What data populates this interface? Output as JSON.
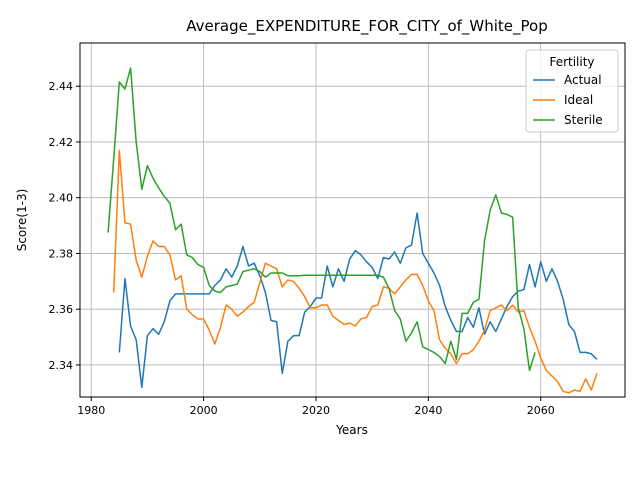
{
  "chart_data": {
    "type": "line",
    "title": "Average_EXPENDITURE_FOR_CITY_of_White_Pop",
    "xlabel": "Years",
    "ylabel": "Score(1-3)",
    "xlim": [
      1978,
      2075
    ],
    "ylim": [
      2.3285,
      2.4555
    ],
    "xticks": [
      1980,
      2000,
      2020,
      2040,
      2060
    ],
    "yticks": [
      2.34,
      2.36,
      2.38,
      2.4,
      2.42,
      2.44
    ],
    "ytick_labels": [
      "2.34",
      "2.36",
      "2.38",
      "2.40",
      "2.42",
      "2.44"
    ],
    "grid": true,
    "legend": {
      "title": "Fertility",
      "placement": "top-right"
    },
    "series": [
      {
        "name": "Actual",
        "color": "#1f77b4",
        "points": [
          [
            1985,
            2.3445
          ],
          [
            1986,
            2.371
          ],
          [
            1987,
            2.354
          ],
          [
            1988,
            2.349
          ],
          [
            1989,
            2.332
          ],
          [
            1990,
            2.3505
          ],
          [
            1991,
            2.353
          ],
          [
            1992,
            2.351
          ],
          [
            1993,
            2.3555
          ],
          [
            1994,
            2.363
          ],
          [
            1995,
            2.3655
          ],
          [
            1996,
            2.3655
          ],
          [
            1997,
            2.3655
          ],
          [
            1998,
            2.3655
          ],
          [
            1999,
            2.3655
          ],
          [
            2000,
            2.3655
          ],
          [
            2001,
            2.3655
          ],
          [
            2002,
            2.3685
          ],
          [
            2003,
            2.3705
          ],
          [
            2004,
            2.3745
          ],
          [
            2005,
            2.3715
          ],
          [
            2006,
            2.3755
          ],
          [
            2007,
            2.3825
          ],
          [
            2008,
            2.3755
          ],
          [
            2009,
            2.3765
          ],
          [
            2010,
            2.372
          ],
          [
            2011,
            2.366
          ],
          [
            2012,
            2.356
          ],
          [
            2013,
            2.3555
          ],
          [
            2014,
            2.337
          ],
          [
            2015,
            2.3485
          ],
          [
            2016,
            2.3505
          ],
          [
            2017,
            2.3505
          ],
          [
            2018,
            2.359
          ],
          [
            2019,
            2.361
          ],
          [
            2020,
            2.364
          ],
          [
            2021,
            2.364
          ],
          [
            2022,
            2.3755
          ],
          [
            2023,
            2.368
          ],
          [
            2024,
            2.3745
          ],
          [
            2025,
            2.37
          ],
          [
            2026,
            2.378
          ],
          [
            2027,
            2.381
          ],
          [
            2028,
            2.3795
          ],
          [
            2029,
            2.377
          ],
          [
            2030,
            2.375
          ],
          [
            2031,
            2.371
          ],
          [
            2032,
            2.3785
          ],
          [
            2033,
            2.378
          ],
          [
            2034,
            2.3805
          ],
          [
            2035,
            2.3765
          ],
          [
            2036,
            2.382
          ],
          [
            2037,
            2.383
          ],
          [
            2038,
            2.3945
          ],
          [
            2039,
            2.38
          ],
          [
            2040,
            2.3765
          ],
          [
            2041,
            2.373
          ],
          [
            2042,
            2.3685
          ],
          [
            2043,
            2.361
          ],
          [
            2044,
            2.356
          ],
          [
            2045,
            2.352
          ],
          [
            2046,
            2.352
          ],
          [
            2047,
            2.357
          ],
          [
            2048,
            2.3535
          ],
          [
            2049,
            2.3605
          ],
          [
            2050,
            2.351
          ],
          [
            2051,
            2.3555
          ],
          [
            2052,
            2.352
          ],
          [
            2053,
            2.3565
          ],
          [
            2054,
            2.361
          ],
          [
            2055,
            2.3645
          ],
          [
            2056,
            2.3665
          ],
          [
            2057,
            2.367
          ],
          [
            2058,
            2.376
          ],
          [
            2059,
            2.368
          ],
          [
            2060,
            2.377
          ],
          [
            2061,
            2.37
          ],
          [
            2062,
            2.3745
          ],
          [
            2063,
            2.37
          ],
          [
            2064,
            2.3635
          ],
          [
            2065,
            2.3545
          ],
          [
            2066,
            2.352
          ],
          [
            2067,
            2.3445
          ],
          [
            2068,
            2.3445
          ],
          [
            2069,
            2.344
          ],
          [
            2070,
            2.342
          ]
        ]
      },
      {
        "name": "Ideal",
        "color": "#ff7f0e",
        "points": [
          [
            1984,
            2.366
          ],
          [
            1985,
            2.417
          ],
          [
            1986,
            2.391
          ],
          [
            1987,
            2.3905
          ],
          [
            1988,
            2.3775
          ],
          [
            1989,
            2.3715
          ],
          [
            1990,
            2.379
          ],
          [
            1991,
            2.3845
          ],
          [
            1992,
            2.3825
          ],
          [
            1993,
            2.3825
          ],
          [
            1994,
            2.3795
          ],
          [
            1995,
            2.3705
          ],
          [
            1996,
            2.372
          ],
          [
            1997,
            2.36
          ],
          [
            1998,
            2.358
          ],
          [
            1999,
            2.3565
          ],
          [
            2000,
            2.3565
          ],
          [
            2001,
            2.3525
          ],
          [
            2002,
            2.3475
          ],
          [
            2003,
            2.3535
          ],
          [
            2004,
            2.3615
          ],
          [
            2005,
            2.36
          ],
          [
            2006,
            2.3575
          ],
          [
            2007,
            2.359
          ],
          [
            2008,
            2.361
          ],
          [
            2009,
            2.3625
          ],
          [
            2010,
            2.3695
          ],
          [
            2011,
            2.3765
          ],
          [
            2012,
            2.3755
          ],
          [
            2013,
            2.3745
          ],
          [
            2014,
            2.368
          ],
          [
            2015,
            2.3705
          ],
          [
            2016,
            2.37
          ],
          [
            2017,
            2.3675
          ],
          [
            2018,
            2.3645
          ],
          [
            2019,
            2.3605
          ],
          [
            2020,
            2.3605
          ],
          [
            2021,
            2.3615
          ],
          [
            2022,
            2.3615
          ],
          [
            2023,
            2.3575
          ],
          [
            2024,
            2.356
          ],
          [
            2025,
            2.3545
          ],
          [
            2026,
            2.355
          ],
          [
            2027,
            2.354
          ],
          [
            2028,
            2.3565
          ],
          [
            2029,
            2.357
          ],
          [
            2030,
            2.361
          ],
          [
            2031,
            2.3615
          ],
          [
            2032,
            2.368
          ],
          [
            2033,
            2.3675
          ],
          [
            2034,
            2.3655
          ],
          [
            2035,
            2.368
          ],
          [
            2036,
            2.3705
          ],
          [
            2037,
            2.3725
          ],
          [
            2038,
            2.3725
          ],
          [
            2039,
            2.3685
          ],
          [
            2040,
            2.363
          ],
          [
            2041,
            2.3595
          ],
          [
            2042,
            2.349
          ],
          [
            2043,
            2.346
          ],
          [
            2044,
            2.344
          ],
          [
            2045,
            2.3405
          ],
          [
            2046,
            2.344
          ],
          [
            2047,
            2.344
          ],
          [
            2048,
            2.3455
          ],
          [
            2049,
            2.3485
          ],
          [
            2050,
            2.3525
          ],
          [
            2051,
            2.3595
          ],
          [
            2052,
            2.3605
          ],
          [
            2053,
            2.3615
          ],
          [
            2054,
            2.3595
          ],
          [
            2055,
            2.3615
          ],
          [
            2056,
            2.359
          ],
          [
            2057,
            2.3595
          ],
          [
            2058,
            2.3535
          ],
          [
            2059,
            2.3485
          ],
          [
            2060,
            2.3425
          ],
          [
            2061,
            2.338
          ],
          [
            2062,
            2.336
          ],
          [
            2063,
            2.334
          ],
          [
            2064,
            2.3305
          ],
          [
            2065,
            2.33
          ],
          [
            2066,
            2.331
          ],
          [
            2067,
            2.3305
          ],
          [
            2068,
            2.335
          ],
          [
            2069,
            2.331
          ],
          [
            2070,
            2.337
          ]
        ]
      },
      {
        "name": "Sterile",
        "color": "#2ca02c",
        "points": [
          [
            1983,
            2.3875
          ],
          [
            1984,
            2.414
          ],
          [
            1985,
            2.4415
          ],
          [
            1986,
            2.439
          ],
          [
            1987,
            2.4465
          ],
          [
            1988,
            2.42
          ],
          [
            1989,
            2.403
          ],
          [
            1990,
            2.4115
          ],
          [
            1991,
            2.407
          ],
          [
            1992,
            2.4035
          ],
          [
            1993,
            2.4005
          ],
          [
            1994,
            2.398
          ],
          [
            1995,
            2.3885
          ],
          [
            1996,
            2.3905
          ],
          [
            1997,
            2.3795
          ],
          [
            1998,
            2.3785
          ],
          [
            1999,
            2.376
          ],
          [
            2000,
            2.375
          ],
          [
            2001,
            2.3685
          ],
          [
            2002,
            2.3665
          ],
          [
            2003,
            2.366
          ],
          [
            2004,
            2.368
          ],
          [
            2005,
            2.3685
          ],
          [
            2006,
            2.369
          ],
          [
            2007,
            2.3735
          ],
          [
            2008,
            2.374
          ],
          [
            2009,
            2.3745
          ],
          [
            2010,
            2.3735
          ],
          [
            2011,
            2.3715
          ],
          [
            2012,
            2.373
          ],
          [
            2013,
            2.373
          ],
          [
            2014,
            2.373
          ],
          [
            2015,
            2.372
          ],
          [
            2016,
            2.372
          ],
          [
            2017,
            2.372
          ],
          [
            2018,
            2.3722
          ],
          [
            2019,
            2.3722
          ],
          [
            2020,
            2.3722
          ],
          [
            2021,
            2.3722
          ],
          [
            2022,
            2.3722
          ],
          [
            2023,
            2.3722
          ],
          [
            2024,
            2.3722
          ],
          [
            2025,
            2.3722
          ],
          [
            2026,
            2.3722
          ],
          [
            2027,
            2.3722
          ],
          [
            2028,
            2.3722
          ],
          [
            2029,
            2.3722
          ],
          [
            2030,
            2.3722
          ],
          [
            2031,
            2.3722
          ],
          [
            2032,
            2.3715
          ],
          [
            2033,
            2.3675
          ],
          [
            2034,
            2.3595
          ],
          [
            2035,
            2.3565
          ],
          [
            2036,
            2.3485
          ],
          [
            2037,
            2.3515
          ],
          [
            2038,
            2.3555
          ],
          [
            2039,
            2.3465
          ],
          [
            2040,
            2.3455
          ],
          [
            2041,
            2.3445
          ],
          [
            2042,
            2.343
          ],
          [
            2043,
            2.3405
          ],
          [
            2044,
            2.3485
          ],
          [
            2045,
            2.342
          ],
          [
            2046,
            2.3585
          ],
          [
            2047,
            2.3585
          ],
          [
            2048,
            2.3625
          ],
          [
            2049,
            2.3635
          ],
          [
            2050,
            2.3845
          ],
          [
            2051,
            2.3955
          ],
          [
            2052,
            2.401
          ],
          [
            2053,
            2.3945
          ],
          [
            2054,
            2.394
          ],
          [
            2055,
            2.393
          ],
          [
            2056,
            2.3605
          ],
          [
            2057,
            2.353
          ],
          [
            2058,
            2.338
          ],
          [
            2059,
            2.3445
          ]
        ]
      }
    ]
  }
}
